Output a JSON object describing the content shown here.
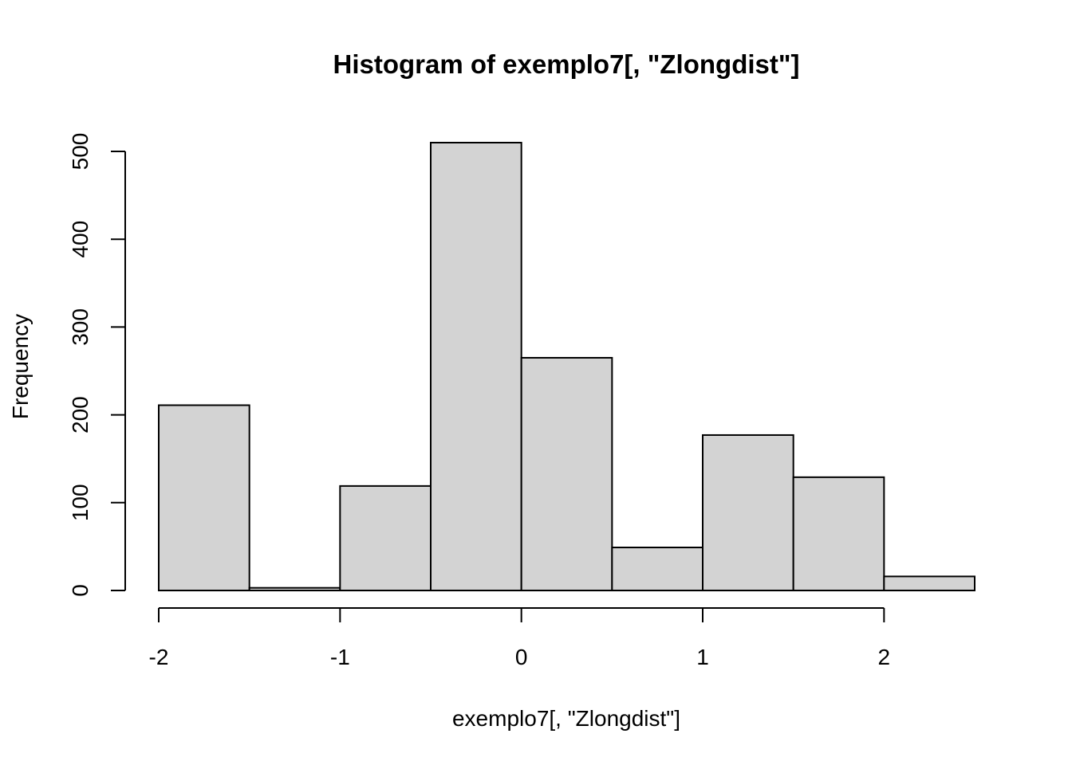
{
  "chart_data": {
    "type": "bar",
    "subtype": "histogram",
    "title": "Histogram of exemplo7[, \"Zlongdist\"]",
    "xlabel": "exemplo7[, \"Zlongdist\"]",
    "ylabel": "Frequency",
    "bins": [
      {
        "start": -2.0,
        "end": -1.5,
        "count": 211
      },
      {
        "start": -1.5,
        "end": -1.0,
        "count": 3
      },
      {
        "start": -1.0,
        "end": -0.5,
        "count": 119
      },
      {
        "start": -0.5,
        "end": 0.0,
        "count": 510
      },
      {
        "start": 0.0,
        "end": 0.5,
        "count": 265
      },
      {
        "start": 0.5,
        "end": 1.0,
        "count": 49
      },
      {
        "start": 1.0,
        "end": 1.5,
        "count": 177
      },
      {
        "start": 1.5,
        "end": 2.0,
        "count": 129
      },
      {
        "start": 2.0,
        "end": 2.5,
        "count": 16
      }
    ],
    "xticks": [
      -2,
      -1,
      0,
      1,
      2
    ],
    "xtick_labels": [
      "-2",
      "-1",
      "0",
      "1",
      "2"
    ],
    "yticks": [
      0,
      100,
      200,
      300,
      400,
      500
    ],
    "ytick_labels": [
      "0",
      "100",
      "200",
      "300",
      "400",
      "500"
    ],
    "xlim": [
      -2.0,
      2.5
    ],
    "ylim": [
      0,
      510
    ],
    "grid": false,
    "legend": "none",
    "colors": {
      "bar_fill": "#d3d3d3",
      "bar_stroke": "#000000",
      "background": "#ffffff"
    }
  }
}
